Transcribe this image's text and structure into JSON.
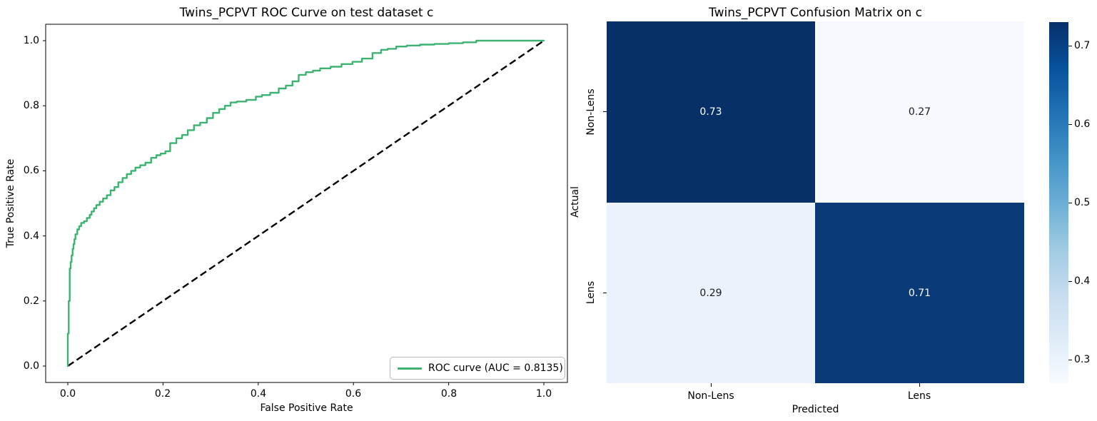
{
  "figure": {
    "background": "#ffffff"
  },
  "ui": {
    "roc": {
      "title": "Twins_PCPVT ROC Curve on test dataset c",
      "xlabel": "False Positive Rate",
      "ylabel": "True Positive Rate",
      "x_ticks": [
        "0.0",
        "0.2",
        "0.4",
        "0.6",
        "0.8",
        "1.0"
      ],
      "y_ticks": [
        "1.0",
        "0.8",
        "0.6",
        "0.4",
        "0.2",
        "0.0"
      ],
      "legend_label": "ROC curve (AUC = 0.8135)"
    },
    "cm": {
      "title": "Twins_PCPVT Confusion Matrix on c",
      "xlabel": "Predicted",
      "ylabel": "Actual",
      "x_ticks": [
        "Non-Lens",
        "Lens"
      ],
      "y_ticks": [
        "Non-Lens",
        "Lens"
      ],
      "colorbar_ticks": [
        "0.7",
        "0.6",
        "0.5",
        "0.4",
        "0.3"
      ]
    }
  },
  "chart_data": [
    {
      "type": "line",
      "title": "Twins_PCPVT ROC Curve on test dataset c",
      "xlabel": "False Positive Rate",
      "ylabel": "True Positive Rate",
      "xlim": [
        0.0,
        1.0
      ],
      "ylim": [
        0.0,
        1.0
      ],
      "x_ticks": [
        0.0,
        0.2,
        0.4,
        0.6,
        0.8,
        1.0
      ],
      "y_ticks": [
        0.0,
        0.2,
        0.4,
        0.6,
        0.8,
        1.0
      ],
      "grid": false,
      "legend_position": "lower right",
      "series": [
        {
          "name": "ROC curve",
          "auc": 0.8135,
          "color": "#3cb371",
          "style": "solid",
          "interpolation": "step",
          "points": [
            [
              0.0,
              0.0
            ],
            [
              0.0,
              0.06
            ],
            [
              0.002,
              0.1
            ],
            [
              0.002,
              0.16
            ],
            [
              0.004,
              0.2
            ],
            [
              0.004,
              0.26
            ],
            [
              0.006,
              0.3
            ],
            [
              0.008,
              0.32
            ],
            [
              0.01,
              0.34
            ],
            [
              0.012,
              0.36
            ],
            [
              0.014,
              0.375
            ],
            [
              0.016,
              0.39
            ],
            [
              0.02,
              0.405
            ],
            [
              0.024,
              0.42
            ],
            [
              0.028,
              0.43
            ],
            [
              0.034,
              0.44
            ],
            [
              0.04,
              0.445
            ],
            [
              0.046,
              0.455
            ],
            [
              0.05,
              0.465
            ],
            [
              0.055,
              0.475
            ],
            [
              0.06,
              0.485
            ],
            [
              0.067,
              0.495
            ],
            [
              0.074,
              0.505
            ],
            [
              0.082,
              0.515
            ],
            [
              0.09,
              0.525
            ],
            [
              0.098,
              0.54
            ],
            [
              0.106,
              0.55
            ],
            [
              0.115,
              0.565
            ],
            [
              0.124,
              0.578
            ],
            [
              0.133,
              0.59
            ],
            [
              0.142,
              0.6
            ],
            [
              0.152,
              0.61
            ],
            [
              0.163,
              0.617
            ],
            [
              0.175,
              0.625
            ],
            [
              0.186,
              0.64
            ],
            [
              0.195,
              0.648
            ],
            [
              0.205,
              0.653
            ],
            [
              0.215,
              0.66
            ],
            [
              0.228,
              0.685
            ],
            [
              0.24,
              0.7
            ],
            [
              0.252,
              0.71
            ],
            [
              0.265,
              0.725
            ],
            [
              0.278,
              0.74
            ],
            [
              0.292,
              0.748
            ],
            [
              0.305,
              0.762
            ],
            [
              0.318,
              0.778
            ],
            [
              0.33,
              0.79
            ],
            [
              0.342,
              0.8
            ],
            [
              0.355,
              0.81
            ],
            [
              0.375,
              0.813
            ],
            [
              0.395,
              0.818
            ],
            [
              0.408,
              0.828
            ],
            [
              0.425,
              0.833
            ],
            [
              0.443,
              0.84
            ],
            [
              0.458,
              0.853
            ],
            [
              0.472,
              0.862
            ],
            [
              0.485,
              0.875
            ],
            [
              0.5,
              0.895
            ],
            [
              0.515,
              0.903
            ],
            [
              0.53,
              0.908
            ],
            [
              0.552,
              0.915
            ],
            [
              0.575,
              0.92
            ],
            [
              0.598,
              0.928
            ],
            [
              0.618,
              0.935
            ],
            [
              0.64,
              0.945
            ],
            [
              0.658,
              0.962
            ],
            [
              0.672,
              0.972
            ],
            [
              0.69,
              0.975
            ],
            [
              0.712,
              0.982
            ],
            [
              0.74,
              0.985
            ],
            [
              0.77,
              0.988
            ],
            [
              0.8,
              0.99
            ],
            [
              0.83,
              0.992
            ],
            [
              0.858,
              0.995
            ],
            [
              0.885,
              1.0
            ],
            [
              1.0,
              1.0
            ]
          ]
        },
        {
          "name": "chance diagonal",
          "color": "#000000",
          "style": "dashed",
          "points": [
            [
              0.0,
              0.0
            ],
            [
              1.0,
              1.0
            ]
          ]
        }
      ]
    },
    {
      "type": "heatmap",
      "title": "Twins_PCPVT Confusion Matrix on c",
      "xlabel": "Predicted",
      "ylabel": "Actual",
      "x_labels": [
        "Non-Lens",
        "Lens"
      ],
      "y_labels": [
        "Non-Lens",
        "Lens"
      ],
      "values": [
        [
          0.73,
          0.27
        ],
        [
          0.29,
          0.71
        ]
      ],
      "cell_colors": [
        [
          "#083068",
          "#f6f9fe"
        ],
        [
          "#ebf2fb",
          "#0a3a78"
        ]
      ],
      "cell_text_colors": [
        [
          "#ffffff",
          "#1a1a1a"
        ],
        [
          "#1a1a1a",
          "#ffffff"
        ]
      ],
      "colormap": "Blues",
      "colormap_stops": [
        "#f7fbff",
        "#deebf7",
        "#c6dbef",
        "#9ecae1",
        "#6baed6",
        "#4292c6",
        "#2171b5",
        "#08519c",
        "#08306b"
      ],
      "vmin": 0.27,
      "vmax": 0.73,
      "colorbar_ticks": [
        0.7,
        0.6,
        0.5,
        0.4,
        0.3
      ]
    }
  ]
}
